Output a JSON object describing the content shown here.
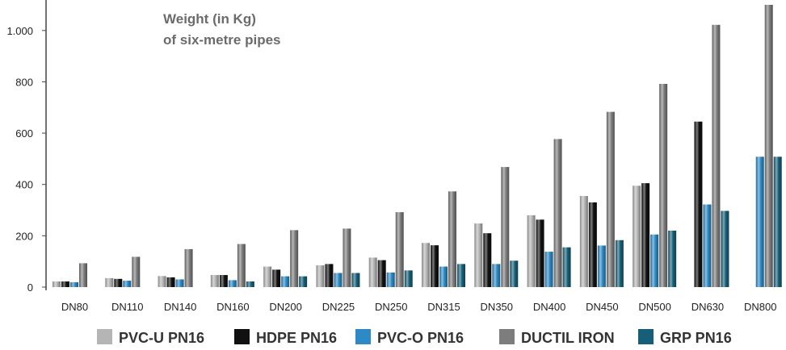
{
  "chart_data": {
    "type": "bar",
    "title_lines": [
      "Weight (in Kg)",
      "of six-metre pipes"
    ],
    "xlabel": "",
    "ylabel": "",
    "ylim": [
      0,
      1100
    ],
    "y_ticks": [
      0,
      200,
      400,
      600,
      800,
      1000
    ],
    "y_tick_labels": [
      "0",
      "200",
      "400",
      "600",
      "800",
      "1.000"
    ],
    "grid": false,
    "legend_position": "bottom",
    "categories": [
      "DN80",
      "DN110",
      "DN140",
      "DN160",
      "DN200",
      "DN225",
      "DN250",
      "DN315",
      "DN350",
      "DN400",
      "DN450",
      "DN500",
      "DN630",
      "DN800"
    ],
    "series": [
      {
        "name": "PVC-U PN16",
        "color": "#b5b5b5",
        "values": [
          22,
          35,
          43,
          47,
          80,
          85,
          115,
          172,
          248,
          280,
          355,
          395,
          null,
          null
        ]
      },
      {
        "name": "HDPE PN16",
        "color": "#111111",
        "values": [
          22,
          32,
          38,
          47,
          68,
          90,
          105,
          163,
          210,
          263,
          330,
          405,
          645,
          null
        ]
      },
      {
        "name": "PVC-O PN16",
        "color": "#2d8ac6",
        "values": [
          19,
          25,
          30,
          27,
          42,
          55,
          57,
          80,
          90,
          138,
          162,
          205,
          322,
          508
        ]
      },
      {
        "name": "DUCTIL IRON",
        "color": "#7d7d7d",
        "values": [
          93,
          118,
          148,
          168,
          222,
          228,
          292,
          373,
          468,
          577,
          683,
          792,
          1022,
          1100
        ]
      },
      {
        "name": "GRP PN16",
        "color": "#175f78",
        "values": [
          null,
          null,
          null,
          22,
          42,
          55,
          65,
          90,
          103,
          155,
          183,
          220,
          297,
          508
        ]
      }
    ]
  }
}
